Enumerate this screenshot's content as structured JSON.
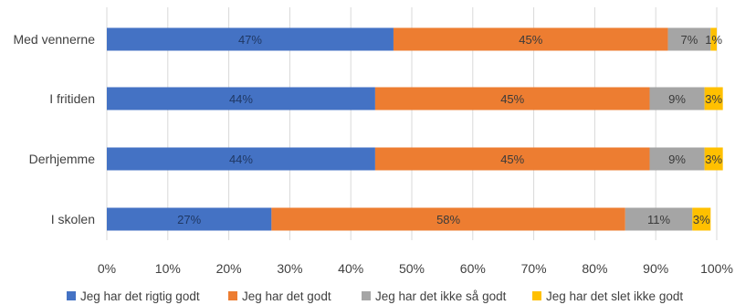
{
  "chart_data": {
    "type": "bar",
    "orientation": "horizontal",
    "stacked": true,
    "percent": true,
    "title": "",
    "xlabel": "",
    "ylabel": "",
    "xlim": [
      0,
      100
    ],
    "categories": [
      "Med vennerne",
      "I fritiden",
      "Derhjemme",
      "I skolen"
    ],
    "series": [
      {
        "name": "Jeg har det rigtig godt",
        "color": "#4472C4",
        "label_color": "#1F3864",
        "values": [
          47,
          44,
          44,
          27
        ],
        "labels": [
          "47%",
          "44%",
          "44%",
          "27%"
        ]
      },
      {
        "name": "Jeg har det godt",
        "color": "#ED7D31",
        "label_color": "#3a3a3a",
        "values": [
          45,
          45,
          45,
          58
        ],
        "labels": [
          "45%",
          "45%",
          "45%",
          "58%"
        ]
      },
      {
        "name": "Jeg har det ikke så godt",
        "color": "#A5A5A5",
        "label_color": "#3a3a3a",
        "values": [
          7,
          9,
          9,
          11
        ],
        "labels": [
          "7%",
          "9%",
          "9%",
          "11%"
        ]
      },
      {
        "name": "Jeg har det slet ikke godt",
        "color": "#FFC000",
        "label_color": "#3a3a3a",
        "values": [
          1,
          3,
          3,
          3
        ],
        "labels": [
          "1%",
          "3%",
          "3%",
          "3%"
        ]
      }
    ],
    "x_ticks": [
      "0%",
      "10%",
      "20%",
      "30%",
      "40%",
      "50%",
      "60%",
      "70%",
      "80%",
      "90%",
      "100%"
    ],
    "grid": true,
    "legend_position": "bottom"
  }
}
